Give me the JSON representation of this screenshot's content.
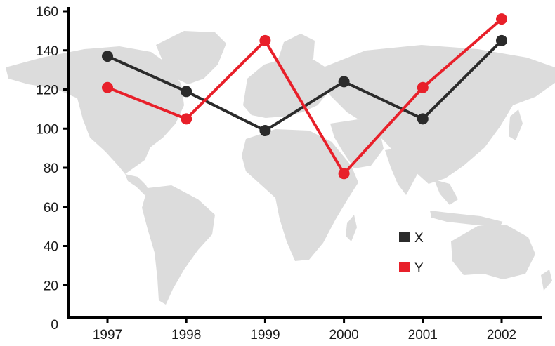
{
  "chart_data": {
    "type": "line",
    "title": "",
    "xlabel": "",
    "ylabel": "",
    "categories": [
      "1997",
      "1998",
      "1999",
      "2000",
      "2001",
      "2002"
    ],
    "ylim": [
      0,
      160
    ],
    "yticks": [
      0,
      20,
      40,
      60,
      80,
      100,
      120,
      140,
      160
    ],
    "grid": false,
    "legend_position": "bottom-right",
    "background": "world-map",
    "series": [
      {
        "name": "X",
        "color": "#2b2b2b",
        "values": [
          137,
          119,
          99,
          124,
          105,
          145
        ]
      },
      {
        "name": "Y",
        "color": "#e8202a",
        "values": [
          121,
          105,
          145,
          77,
          121,
          156
        ]
      }
    ]
  }
}
